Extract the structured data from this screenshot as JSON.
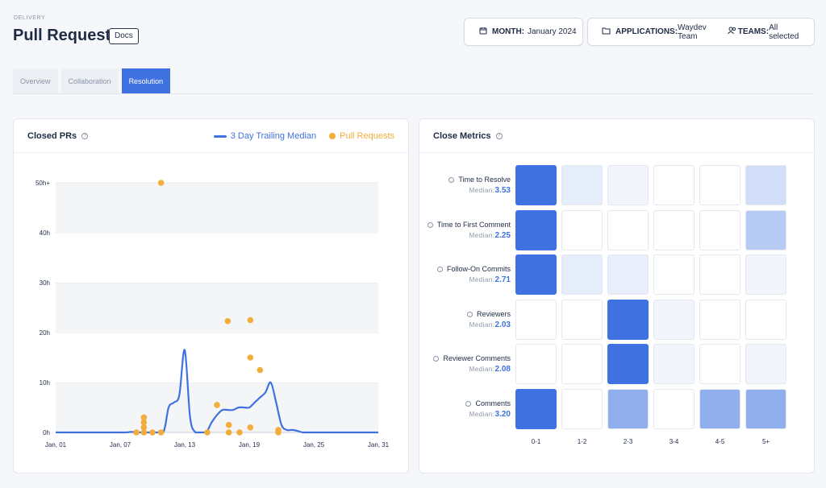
{
  "header": {
    "eyebrow": "DELIVERY",
    "title": "Pull Request",
    "docs_label": "Docs"
  },
  "filters": {
    "month_label": "MONTH:",
    "month_value": "January 2024",
    "apps_label": "APPLICATIONS:",
    "apps_value": "Waydev Team",
    "teams_label": "TEAMS:",
    "teams_value": "All selected"
  },
  "tabs": [
    {
      "label": "Overview",
      "active": false
    },
    {
      "label": "Collaboration",
      "active": false
    },
    {
      "label": "Resolution",
      "active": true
    }
  ],
  "closed_prs": {
    "title": "Closed PRs",
    "legend_median": "3 Day Trailing Median",
    "legend_prs": "Pull Requests"
  },
  "close_metrics": {
    "title": "Close Metrics",
    "median_label": "Median:",
    "columns": [
      "0-1",
      "1-2",
      "2-3",
      "3-4",
      "4-5",
      "5+"
    ],
    "rows": [
      {
        "label": "Time to Resolve",
        "median": "3.53",
        "intensity": [
          1.0,
          0.1,
          0.03,
          0.0,
          0.0,
          0.2
        ]
      },
      {
        "label": "Time to First Comment",
        "median": "2.25",
        "intensity": [
          1.0,
          0.0,
          0.0,
          0.0,
          0.0,
          0.35
        ]
      },
      {
        "label": "Follow-On Commits",
        "median": "2.71",
        "intensity": [
          1.0,
          0.1,
          0.08,
          0.0,
          0.0,
          0.03
        ]
      },
      {
        "label": "Reviewers",
        "median": "2.03",
        "intensity": [
          0.0,
          0.0,
          1.0,
          0.03,
          0.0,
          0.0
        ]
      },
      {
        "label": "Reviewer Comments",
        "median": "2.08",
        "intensity": [
          0.0,
          0.0,
          1.0,
          0.03,
          0.0,
          0.03
        ]
      },
      {
        "label": "Comments",
        "median": "3.20",
        "intensity": [
          1.0,
          0.0,
          0.55,
          0.0,
          0.55,
          0.55
        ]
      }
    ]
  },
  "colors": {
    "accent": "#3f72e0",
    "dot": "#f2ad3c",
    "cell_empty": "#ffffff"
  },
  "chart_data": {
    "type": "line",
    "title": "Closed PRs",
    "y_ticks": [
      "0h",
      "10h",
      "20h",
      "30h",
      "40h",
      "50h+"
    ],
    "x_ticks": [
      "Jan, 01",
      "Jan, 07",
      "Jan, 13",
      "Jan, 19",
      "Jan, 25",
      "Jan, 31"
    ],
    "ylim": [
      0,
      50
    ],
    "xlim": [
      1,
      31
    ],
    "series": [
      {
        "name": "3 Day Trailing Median",
        "type": "line",
        "x": [
          1,
          7,
          8,
          9,
          10,
          11,
          11.5,
          12,
          12.5,
          13,
          13.5,
          14,
          14.5,
          15,
          15.5,
          16,
          16.5,
          17,
          17.5,
          18,
          18.5,
          19,
          19.5,
          20,
          20.5,
          21,
          21.5,
          22,
          22.5,
          23,
          23.5,
          24,
          25,
          26,
          31
        ],
        "y": [
          0,
          0,
          0.1,
          0,
          0,
          0,
          5,
          6,
          7.5,
          16.5,
          3,
          0,
          0,
          0,
          2,
          3.5,
          4.5,
          4.5,
          4.5,
          5,
          5,
          5,
          6,
          7,
          8,
          10,
          6,
          1.5,
          0.5,
          0.5,
          0.3,
          0,
          0,
          0,
          0
        ]
      },
      {
        "name": "Pull Requests",
        "type": "scatter",
        "x": [
          8.5,
          9.2,
          9.2,
          9.2,
          9.2,
          10,
          10.8,
          10.8,
          15.1,
          16,
          17,
          17.1,
          17.1,
          18.1,
          19.1,
          19.1,
          19.1,
          20,
          21.7,
          21.7
        ],
        "y": [
          0,
          0,
          1,
          2,
          3,
          0,
          50,
          0,
          0,
          5.5,
          22.3,
          1.5,
          0,
          0,
          22.5,
          15,
          1,
          12.5,
          0,
          0.5
        ]
      }
    ]
  }
}
